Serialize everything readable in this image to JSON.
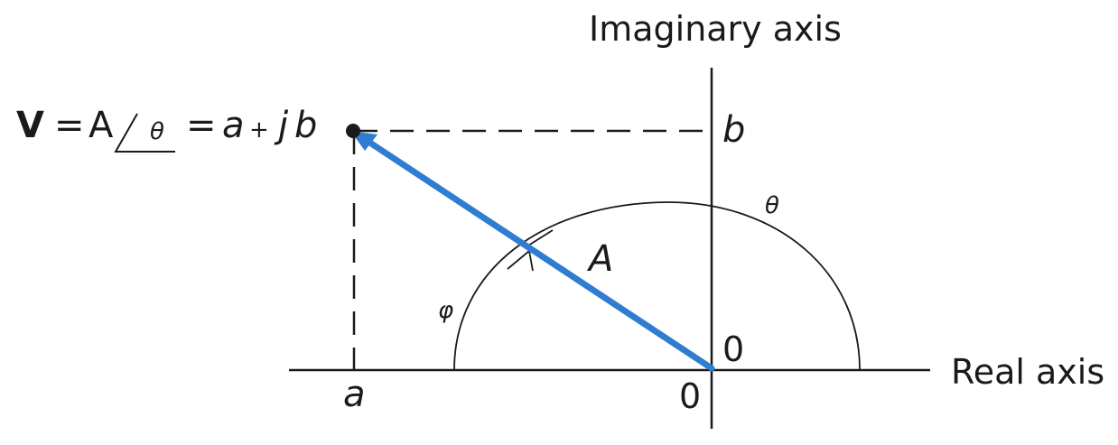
{
  "axes": {
    "imaginary_title": "Imaginary axis",
    "real_title": "Real axis",
    "origin_upper": "0",
    "origin_lower": "0"
  },
  "points": {
    "a_label": "a",
    "b_label": "b",
    "vector_label": "A"
  },
  "angles": {
    "theta": "θ",
    "phi": "φ"
  },
  "equation": {
    "bold_v": "V",
    "eq1": "=",
    "magnitude": "A",
    "angle": "θ",
    "eq2": "=",
    "real": "a",
    "plus": "+",
    "j": "j",
    "imag": "b"
  },
  "colors": {
    "vector": "#2f7dd1",
    "ink": "#1a1a1a"
  }
}
